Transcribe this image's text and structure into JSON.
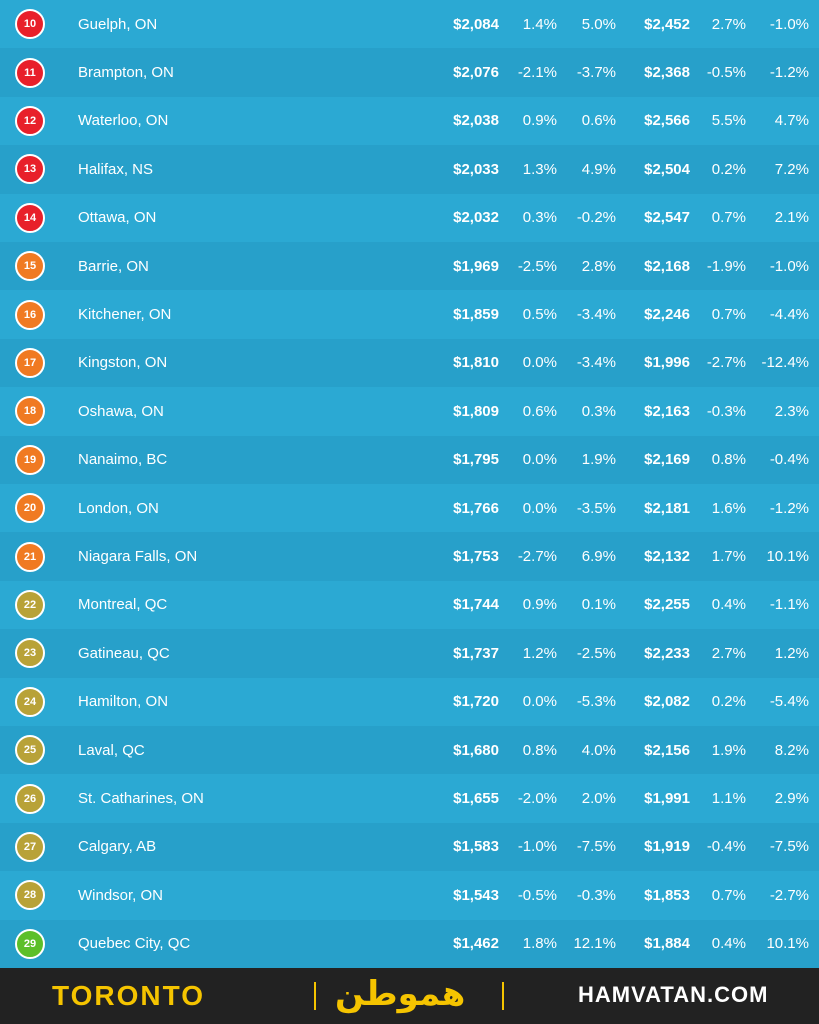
{
  "rows": [
    {
      "rank": "10",
      "city": "Guelph, ON",
      "rent1": "$2,084",
      "p1": "1.4%",
      "p2": "5.0%",
      "rent2": "$2,452",
      "p3": "2.7%",
      "p4": "-1.0%",
      "color": "#e8202a"
    },
    {
      "rank": "11",
      "city": "Brampton, ON",
      "rent1": "$2,076",
      "p1": "-2.1%",
      "p2": "-3.7%",
      "rent2": "$2,368",
      "p3": "-0.5%",
      "p4": "-1.2%",
      "color": "#e8202a"
    },
    {
      "rank": "12",
      "city": "Waterloo, ON",
      "rent1": "$2,038",
      "p1": "0.9%",
      "p2": "0.6%",
      "rent2": "$2,566",
      "p3": "5.5%",
      "p4": "4.7%",
      "color": "#e8202a"
    },
    {
      "rank": "13",
      "city": "Halifax, NS",
      "rent1": "$2,033",
      "p1": "1.3%",
      "p2": "4.9%",
      "rent2": "$2,504",
      "p3": "0.2%",
      "p4": "7.2%",
      "color": "#e8202a"
    },
    {
      "rank": "14",
      "city": "Ottawa, ON",
      "rent1": "$2,032",
      "p1": "0.3%",
      "p2": "-0.2%",
      "rent2": "$2,547",
      "p3": "0.7%",
      "p4": "2.1%",
      "color": "#e8202a"
    },
    {
      "rank": "15",
      "city": "Barrie, ON",
      "rent1": "$1,969",
      "p1": "-2.5%",
      "p2": "2.8%",
      "rent2": "$2,168",
      "p3": "-1.9%",
      "p4": "-1.0%",
      "color": "#f07a22"
    },
    {
      "rank": "16",
      "city": "Kitchener, ON",
      "rent1": "$1,859",
      "p1": "0.5%",
      "p2": "-3.4%",
      "rent2": "$2,246",
      "p3": "0.7%",
      "p4": "-4.4%",
      "color": "#f07a22"
    },
    {
      "rank": "17",
      "city": "Kingston, ON",
      "rent1": "$1,810",
      "p1": "0.0%",
      "p2": "-3.4%",
      "rent2": "$1,996",
      "p3": "-2.7%",
      "p4": "-12.4%",
      "color": "#f07a22"
    },
    {
      "rank": "18",
      "city": "Oshawa, ON",
      "rent1": "$1,809",
      "p1": "0.6%",
      "p2": "0.3%",
      "rent2": "$2,163",
      "p3": "-0.3%",
      "p4": "2.3%",
      "color": "#f07a22"
    },
    {
      "rank": "19",
      "city": "Nanaimo, BC",
      "rent1": "$1,795",
      "p1": "0.0%",
      "p2": "1.9%",
      "rent2": "$2,169",
      "p3": "0.8%",
      "p4": "-0.4%",
      "color": "#f07a22"
    },
    {
      "rank": "20",
      "city": "London, ON",
      "rent1": "$1,766",
      "p1": "0.0%",
      "p2": "-3.5%",
      "rent2": "$2,181",
      "p3": "1.6%",
      "p4": "-1.2%",
      "color": "#f07a22"
    },
    {
      "rank": "21",
      "city": "Niagara Falls, ON",
      "rent1": "$1,753",
      "p1": "-2.7%",
      "p2": "6.9%",
      "rent2": "$2,132",
      "p3": "1.7%",
      "p4": "10.1%",
      "color": "#f07a22"
    },
    {
      "rank": "22",
      "city": "Montreal, QC",
      "rent1": "$1,744",
      "p1": "0.9%",
      "p2": "0.1%",
      "rent2": "$2,255",
      "p3": "0.4%",
      "p4": "-1.1%",
      "color": "#b8a238"
    },
    {
      "rank": "23",
      "city": "Gatineau, QC",
      "rent1": "$1,737",
      "p1": "1.2%",
      "p2": "-2.5%",
      "rent2": "$2,233",
      "p3": "2.7%",
      "p4": "1.2%",
      "color": "#b8a238"
    },
    {
      "rank": "24",
      "city": "Hamilton, ON",
      "rent1": "$1,720",
      "p1": "0.0%",
      "p2": "-5.3%",
      "rent2": "$2,082",
      "p3": "0.2%",
      "p4": "-5.4%",
      "color": "#b8a238"
    },
    {
      "rank": "25",
      "city": "Laval, QC",
      "rent1": "$1,680",
      "p1": "0.8%",
      "p2": "4.0%",
      "rent2": "$2,156",
      "p3": "1.9%",
      "p4": "8.2%",
      "color": "#b8a238"
    },
    {
      "rank": "26",
      "city": "St. Catharines, ON",
      "rent1": "$1,655",
      "p1": "-2.0%",
      "p2": "2.0%",
      "rent2": "$1,991",
      "p3": "1.1%",
      "p4": "2.9%",
      "color": "#b8a238"
    },
    {
      "rank": "27",
      "city": "Calgary, AB",
      "rent1": "$1,583",
      "p1": "-1.0%",
      "p2": "-7.5%",
      "rent2": "$1,919",
      "p3": "-0.4%",
      "p4": "-7.5%",
      "color": "#b8a238"
    },
    {
      "rank": "28",
      "city": "Windsor, ON",
      "rent1": "$1,543",
      "p1": "-0.5%",
      "p2": "-0.3%",
      "rent2": "$1,853",
      "p3": "0.7%",
      "p4": "-2.7%",
      "color": "#b8a238"
    },
    {
      "rank": "29",
      "city": "Quebec City, QC",
      "rent1": "$1,462",
      "p1": "1.8%",
      "p2": "12.1%",
      "rent2": "$1,884",
      "p3": "0.4%",
      "p4": "10.1%",
      "color": "#5cbf2a"
    }
  ],
  "footer": {
    "left": "TORONTO",
    "middle": "هموطن",
    "right": "HAMVATAN.COM"
  }
}
